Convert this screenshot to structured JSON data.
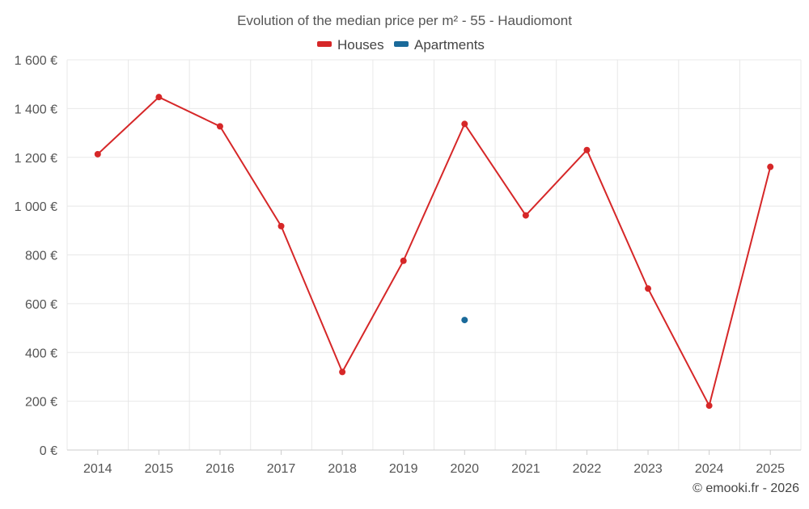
{
  "chart_data": {
    "type": "line",
    "title": "Evolution of the median price per m² - 55 - Haudiomont",
    "categories": [
      "2014",
      "2015",
      "2016",
      "2017",
      "2018",
      "2019",
      "2020",
      "2021",
      "2022",
      "2023",
      "2024",
      "2025"
    ],
    "series": [
      {
        "name": "Houses",
        "color": "#d62728",
        "values": [
          1213,
          1447,
          1327,
          918,
          320,
          776,
          1337,
          962,
          1230,
          662,
          182,
          1161
        ]
      },
      {
        "name": "Apartments",
        "color": "#1a6a9a",
        "values": [
          null,
          null,
          null,
          null,
          null,
          null,
          533,
          null,
          null,
          null,
          null,
          null
        ]
      }
    ],
    "ylim": [
      0,
      1600
    ],
    "yticks": [
      0,
      200,
      400,
      600,
      800,
      1000,
      1200,
      1400,
      1600
    ],
    "ytick_labels": [
      "0 €",
      "200 €",
      "400 €",
      "600 €",
      "800 €",
      "1 000 €",
      "1 200 €",
      "1 400 €",
      "1 600 €"
    ],
    "xlabel": "",
    "ylabel": "",
    "grid": true,
    "legend_position": "top-center"
  },
  "credit": "© emooki.fr - 2026"
}
